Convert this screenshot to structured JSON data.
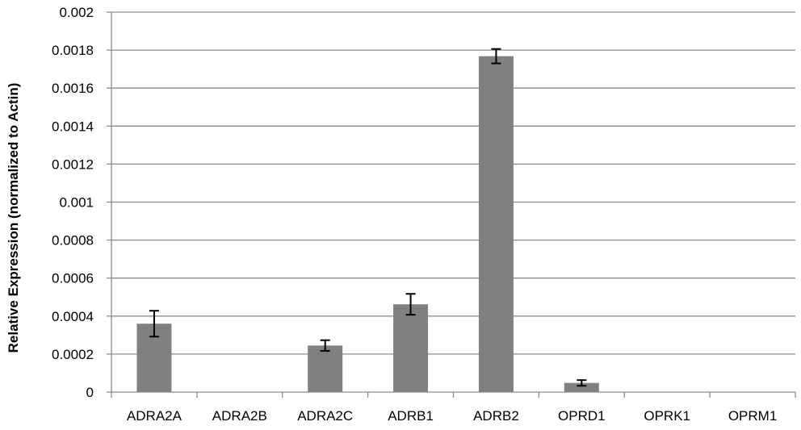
{
  "chart_data": {
    "type": "bar",
    "title": "",
    "xlabel": "",
    "ylabel": "Relative Expression (normalized to Actin)",
    "categories": [
      "ADRA2A",
      "ADRA2B",
      "ADRA2C",
      "ADRB1",
      "ADRB2",
      "OPRD1",
      "OPRK1",
      "OPRM1"
    ],
    "values": [
      0.00036,
      0.0,
      0.000245,
      0.000462,
      0.001768,
      4.8e-05,
      2e-06,
      2e-06
    ],
    "errors": [
      6.8e-05,
      0.0,
      2.8e-05,
      5.5e-05,
      3.8e-05,
      1.5e-05,
      0.0,
      0.0
    ],
    "ylim": [
      0,
      0.002
    ],
    "yticks": [
      "0",
      "0.0002",
      "0.0004",
      "0.0006",
      "0.0008",
      "0.001",
      "0.0012",
      "0.0014",
      "0.0016",
      "0.0018",
      "0.002"
    ],
    "grid": true,
    "legend": "none",
    "colors": {
      "bar": "#808080",
      "grid": "#8c8c8c",
      "axis": "#8c8c8c",
      "error": "#000000",
      "text": "#000000"
    }
  }
}
